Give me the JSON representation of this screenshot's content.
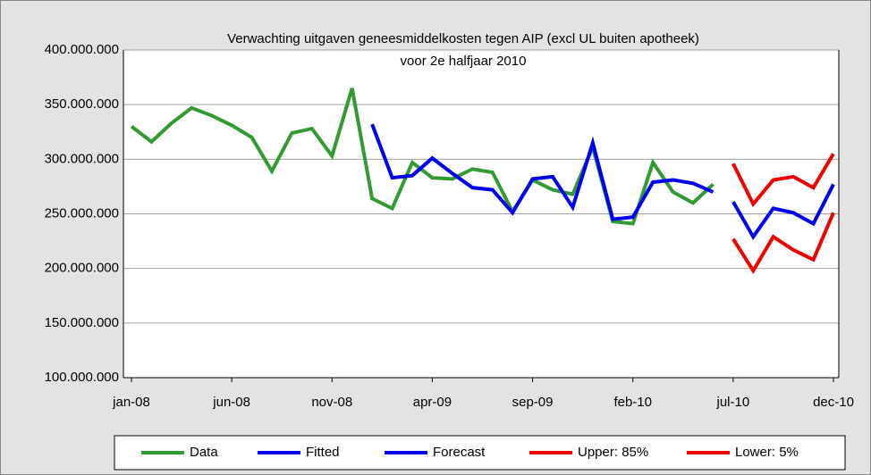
{
  "chart_data": {
    "type": "line",
    "title": [
      "Verwachting uitgaven geneesmiddelkosten tegen AIP (excl UL buiten apotheek)",
      "voor 2e halfjaar 2010"
    ],
    "categories": [
      "jan-08",
      null,
      null,
      null,
      null,
      "jun-08",
      null,
      null,
      null,
      null,
      "nov-08",
      null,
      null,
      null,
      null,
      "apr-09",
      null,
      null,
      null,
      null,
      "sep-09",
      null,
      null,
      null,
      null,
      "feb-10",
      null,
      null,
      null,
      null,
      "jul-10",
      null,
      null,
      null,
      null,
      "dec-10"
    ],
    "series": [
      {
        "name": "Data",
        "color": "#339933",
        "values": [
          330000000,
          316000000,
          333000000,
          347000000,
          340000000,
          331000000,
          320000000,
          289000000,
          324000000,
          328000000,
          303000000,
          365000000,
          264000000,
          255000000,
          297000000,
          283000000,
          282000000,
          291000000,
          288000000,
          252000000,
          281000000,
          272000000,
          268000000,
          311000000,
          243000000,
          241000000,
          297000000,
          270000000,
          260000000,
          277000000,
          null,
          null,
          null,
          null,
          null,
          null
        ]
      },
      {
        "name": "Fitted",
        "color": "#0000ee",
        "values": [
          null,
          null,
          null,
          null,
          null,
          null,
          null,
          null,
          null,
          null,
          null,
          null,
          332000000,
          283000000,
          285000000,
          301000000,
          287000000,
          274000000,
          272000000,
          251000000,
          282000000,
          284000000,
          256000000,
          315000000,
          245000000,
          247000000,
          279000000,
          281000000,
          278000000,
          270000000,
          null,
          null,
          null,
          null,
          null,
          null
        ]
      },
      {
        "name": "Forecast",
        "color": "#0000ee",
        "values": [
          null,
          null,
          null,
          null,
          null,
          null,
          null,
          null,
          null,
          null,
          null,
          null,
          null,
          null,
          null,
          null,
          null,
          null,
          null,
          null,
          null,
          null,
          null,
          null,
          null,
          null,
          null,
          null,
          null,
          null,
          261000000,
          229000000,
          255000000,
          251000000,
          241000000,
          277000000
        ]
      },
      {
        "name": "Upper: 85%",
        "color": "#ee0000",
        "values": [
          null,
          null,
          null,
          null,
          null,
          null,
          null,
          null,
          null,
          null,
          null,
          null,
          null,
          null,
          null,
          null,
          null,
          null,
          null,
          null,
          null,
          null,
          null,
          null,
          null,
          null,
          null,
          null,
          null,
          null,
          296000000,
          259000000,
          281000000,
          284000000,
          274000000,
          305000000
        ]
      },
      {
        "name": "Lower: 5%",
        "color": "#ee0000",
        "values": [
          null,
          null,
          null,
          null,
          null,
          null,
          null,
          null,
          null,
          null,
          null,
          null,
          null,
          null,
          null,
          null,
          null,
          null,
          null,
          null,
          null,
          null,
          null,
          null,
          null,
          null,
          null,
          null,
          null,
          null,
          227000000,
          198000000,
          229000000,
          217000000,
          208000000,
          251000000
        ]
      }
    ],
    "ylim": [
      100000000,
      400000000
    ],
    "yticks": [
      {
        "value": 100000000,
        "label": "100.000.000"
      },
      {
        "value": 150000000,
        "label": "150.000.000"
      },
      {
        "value": 200000000,
        "label": "200.000.000"
      },
      {
        "value": 250000000,
        "label": "250.000.000"
      },
      {
        "value": 300000000,
        "label": "300.000.000"
      },
      {
        "value": 350000000,
        "label": "350.000.000"
      },
      {
        "value": 400000000,
        "label": "400.000.000"
      }
    ],
    "grid": true,
    "legend": "bottom"
  }
}
